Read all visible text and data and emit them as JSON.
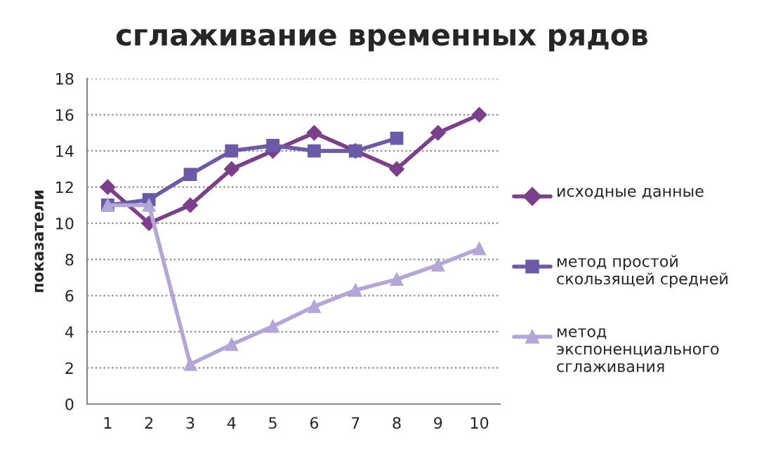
{
  "chart_data": {
    "type": "line",
    "title": "сглаживание временных рядов",
    "ylabel": "показатели",
    "categories": [
      "1",
      "2",
      "3",
      "4",
      "5",
      "6",
      "7",
      "8",
      "9",
      "10"
    ],
    "series": [
      {
        "name": "исходные данные",
        "color": "#7b3f8c",
        "marker": "diamond",
        "values": [
          12,
          10,
          11,
          13,
          14,
          15,
          14,
          13,
          15,
          16
        ]
      },
      {
        "name": "метод простой скользящей средней",
        "color": "#6a5aa8",
        "marker": "square",
        "values": [
          11,
          11.3,
          12.7,
          14,
          14.3,
          14,
          14,
          14.7,
          null,
          null
        ]
      },
      {
        "name": "метод экспоненциального сглаживания",
        "color": "#b3a6d8",
        "marker": "triangle",
        "values": [
          11,
          11,
          2.2,
          3.3,
          4.3,
          5.4,
          6.3,
          6.9,
          7.7,
          8.6
        ]
      }
    ],
    "ylim": [
      0,
      18
    ],
    "yticks": [
      0,
      2,
      4,
      6,
      8,
      10,
      12,
      14,
      16,
      18
    ],
    "grid": "y",
    "legend": "right",
    "line_style": "solid"
  }
}
